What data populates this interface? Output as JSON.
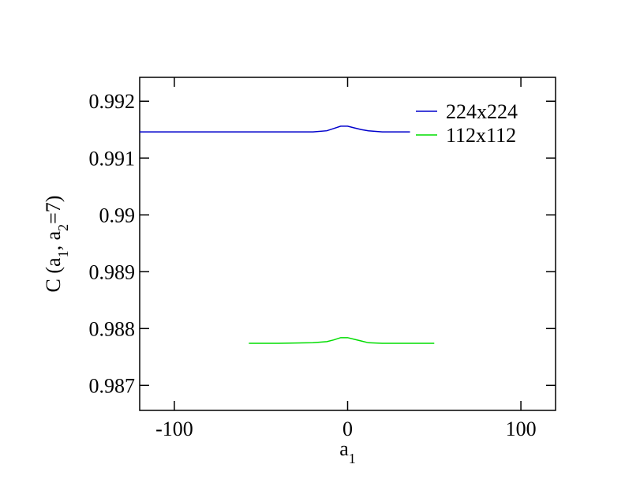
{
  "chart_data": {
    "type": "line",
    "x_label": [
      {
        "text": "a"
      },
      {
        "text": "1",
        "sub": true
      }
    ],
    "y_label": [
      {
        "text": "C (a"
      },
      {
        "text": "1",
        "sub": true
      },
      {
        "text": ", a"
      },
      {
        "text": "2",
        "sub": true
      },
      {
        "text": "=7)"
      }
    ],
    "xlim": [
      -120,
      120
    ],
    "ylim": [
      0.98656,
      0.99242
    ],
    "xticks": [
      -100,
      0,
      100
    ],
    "yticks": [
      0.987,
      0.988,
      0.989,
      0.99,
      0.991,
      0.992
    ],
    "legend": "upper right",
    "series": [
      {
        "name": "224x224",
        "color": "#0000cc",
        "x": [
          -120,
          -80,
          -40,
          -20,
          -12,
          -8,
          -4,
          0,
          4,
          8,
          12,
          20,
          36
        ],
        "values": [
          0.99146,
          0.99146,
          0.99146,
          0.99146,
          0.99148,
          0.99152,
          0.99156,
          0.99156,
          0.99153,
          0.9915,
          0.99148,
          0.99146,
          0.99146
        ]
      },
      {
        "name": "112x112",
        "color": "#00dd00",
        "x": [
          -57,
          -40,
          -20,
          -12,
          -8,
          -4,
          0,
          4,
          8,
          12,
          20,
          36,
          50
        ],
        "values": [
          0.98774,
          0.98774,
          0.98775,
          0.98777,
          0.9878,
          0.98784,
          0.98784,
          0.98781,
          0.98778,
          0.98775,
          0.98774,
          0.98774,
          0.98774
        ]
      }
    ]
  }
}
